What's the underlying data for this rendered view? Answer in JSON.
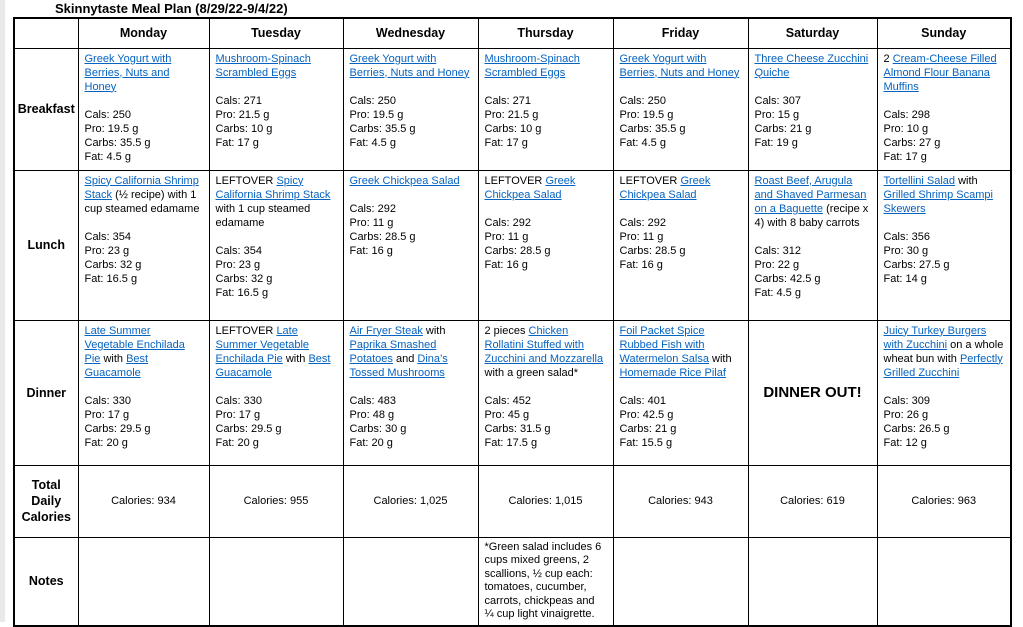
{
  "title": "Skinnytaste Meal Plan (8/29/22-9/4/22)",
  "days": [
    "Monday",
    "Tuesday",
    "Wednesday",
    "Thursday",
    "Friday",
    "Saturday",
    "Sunday"
  ],
  "row_labels": {
    "breakfast": "Breakfast",
    "lunch": "Lunch",
    "dinner": "Dinner",
    "total": "Total Daily Calories",
    "notes": "Notes"
  },
  "link_color": "#0563C1",
  "meals": {
    "breakfast": [
      {
        "segments": [
          {
            "text": "Greek Yogurt with Berries, Nuts and Honey",
            "link": true
          }
        ],
        "macros": [
          "Cals: 250",
          "Pro: 19.5 g",
          "Carbs: 35.5 g",
          "Fat: 4.5 g"
        ]
      },
      {
        "segments": [
          {
            "text": "Mushroom-Spinach Scrambled Eggs",
            "link": true
          }
        ],
        "macros": [
          "Cals: 271",
          "Pro: 21.5 g",
          "Carbs: 10 g",
          "Fat: 17 g"
        ]
      },
      {
        "segments": [
          {
            "text": "Greek Yogurt with Berries, Nuts and Honey",
            "link": true
          }
        ],
        "macros": [
          "Cals: 250",
          "Pro: 19.5 g",
          "Carbs: 35.5 g",
          "Fat: 4.5 g"
        ]
      },
      {
        "segments": [
          {
            "text": "Mushroom-Spinach Scrambled Eggs",
            "link": true
          }
        ],
        "macros": [
          "Cals: 271",
          "Pro: 21.5 g",
          "Carbs: 10 g",
          "Fat: 17 g"
        ]
      },
      {
        "segments": [
          {
            "text": "Greek Yogurt with Berries, Nuts and Honey",
            "link": true
          }
        ],
        "macros": [
          "Cals: 250",
          "Pro: 19.5 g",
          "Carbs: 35.5 g",
          "Fat: 4.5 g"
        ]
      },
      {
        "segments": [
          {
            "text": "Three Cheese Zucchini Quiche",
            "link": true
          }
        ],
        "macros": [
          "Cals: 307",
          "Pro: 15 g",
          "Carbs: 21 g",
          "Fat: 19 g"
        ]
      },
      {
        "segments": [
          {
            "text": "2 ",
            "link": false
          },
          {
            "text": "Cream-Cheese Filled Almond Flour Banana Muffins",
            "link": true
          }
        ],
        "macros": [
          "Cals: 298",
          "Pro: 10 g",
          "Carbs: 27 g",
          "Fat: 17 g"
        ]
      }
    ],
    "lunch": [
      {
        "segments": [
          {
            "text": "Spicy California Shrimp Stack",
            "link": true
          },
          {
            "text": " (½ recipe) with 1 cup steamed edamame",
            "link": false
          }
        ],
        "macros": [
          "Cals: 354",
          "Pro: 23 g",
          "Carbs: 32 g",
          "Fat: 16.5 g"
        ]
      },
      {
        "segments": [
          {
            "text": "LEFTOVER ",
            "link": false
          },
          {
            "text": "Spicy California Shrimp Stack",
            "link": true
          },
          {
            "text": " with 1 cup steamed edamame",
            "link": false
          }
        ],
        "macros": [
          "Cals: 354",
          "Pro: 23 g",
          "Carbs: 32 g",
          "Fat: 16.5 g"
        ]
      },
      {
        "segments": [
          {
            "text": "Greek Chickpea Salad",
            "link": true
          }
        ],
        "macros": [
          "Cals: 292",
          "Pro: 11 g",
          "Carbs: 28.5 g",
          "Fat: 16 g"
        ]
      },
      {
        "segments": [
          {
            "text": "LEFTOVER ",
            "link": false
          },
          {
            "text": "Greek Chickpea Salad",
            "link": true
          }
        ],
        "macros": [
          "Cals: 292",
          "Pro: 11 g",
          "Carbs: 28.5 g",
          "Fat: 16 g"
        ]
      },
      {
        "segments": [
          {
            "text": "LEFTOVER ",
            "link": false
          },
          {
            "text": "Greek Chickpea Salad",
            "link": true
          }
        ],
        "macros": [
          "Cals: 292",
          "Pro: 11 g",
          "Carbs: 28.5 g",
          "Fat: 16 g"
        ]
      },
      {
        "segments": [
          {
            "text": "Roast Beef, Arugula and Shaved Parmesan on a Baguette",
            "link": true
          },
          {
            "text": " (recipe x 4) with 8 baby carrots",
            "link": false
          }
        ],
        "macros": [
          "Cals: 312",
          "Pro: 22 g",
          "Carbs: 42.5 g",
          "Fat: 4.5 g"
        ]
      },
      {
        "segments": [
          {
            "text": "Tortellini Salad",
            "link": true
          },
          {
            "text": " with ",
            "link": false
          },
          {
            "text": "Grilled Shrimp Scampi Skewers",
            "link": true
          }
        ],
        "macros": [
          "Cals: 356",
          "Pro: 30 g",
          "Carbs: 27.5 g",
          "Fat: 14 g"
        ]
      }
    ],
    "dinner": [
      {
        "segments": [
          {
            "text": "Late Summer Vegetable Enchilada Pie",
            "link": true
          },
          {
            "text": " with ",
            "link": false
          },
          {
            "text": "Best Guacamole",
            "link": true
          }
        ],
        "macros": [
          "Cals: 330",
          "Pro: 17 g",
          "Carbs: 29.5 g",
          "Fat: 20 g"
        ]
      },
      {
        "segments": [
          {
            "text": "LEFTOVER ",
            "link": false
          },
          {
            "text": "Late Summer Vegetable Enchilada Pie",
            "link": true
          },
          {
            "text": " with ",
            "link": false
          },
          {
            "text": "Best Guacamole",
            "link": true
          }
        ],
        "macros": [
          "Cals: 330",
          "Pro: 17 g",
          "Carbs: 29.5 g",
          "Fat: 20 g"
        ]
      },
      {
        "segments": [
          {
            "text": "Air Fryer Steak",
            "link": true
          },
          {
            "text": " with ",
            "link": false
          },
          {
            "text": "Paprika Smashed Potatoes",
            "link": true
          },
          {
            "text": " and ",
            "link": false
          },
          {
            "text": "Dina’s Tossed Mushrooms",
            "link": true
          }
        ],
        "macros": [
          "Cals: 483",
          "Pro: 48 g",
          "Carbs: 30 g",
          "Fat: 20 g"
        ]
      },
      {
        "segments": [
          {
            "text": "2 pieces ",
            "link": false
          },
          {
            "text": "Chicken Rollatini Stuffed with Zucchini and Mozzarella",
            "link": true
          },
          {
            "text": " with a green salad*",
            "link": false
          }
        ],
        "macros": [
          "Cals: 452",
          "Pro: 45 g",
          "Carbs: 31.5 g",
          "Fat: 17.5 g"
        ]
      },
      {
        "segments": [
          {
            "text": "Foil Packet Spice Rubbed Fish with Watermelon Salsa",
            "link": true
          },
          {
            "text": " with ",
            "link": false
          },
          {
            "text": "Homemade Rice Pilaf",
            "link": true
          }
        ],
        "macros": [
          "Cals: 401",
          "Pro: 42.5 g",
          "Carbs: 21 g",
          "Fat: 15.5 g"
        ]
      },
      {
        "emphasis": "DINNER OUT!"
      },
      {
        "segments": [
          {
            "text": "Juicy Turkey Burgers with Zucchini",
            "link": true
          },
          {
            "text": " on a whole wheat bun with ",
            "link": false
          },
          {
            "text": "Perfectly Grilled Zucchini",
            "link": true
          }
        ],
        "macros": [
          "Cals: 309",
          "Pro: 26 g",
          "Carbs: 26.5 g",
          "Fat: 12 g"
        ]
      }
    ]
  },
  "totals": [
    "Calories: 934",
    "Calories: 955",
    "Calories: 1,025",
    "Calories: 1,015",
    "Calories: 943",
    "Calories: 619",
    "Calories: 963"
  ],
  "notes": [
    "",
    "",
    "",
    "*Green salad includes 6 cups mixed greens, 2 scallions, ½ cup each: tomatoes, cucumber, carrots, chickpeas and ¼ cup light vinaigrette.",
    "",
    "",
    ""
  ]
}
